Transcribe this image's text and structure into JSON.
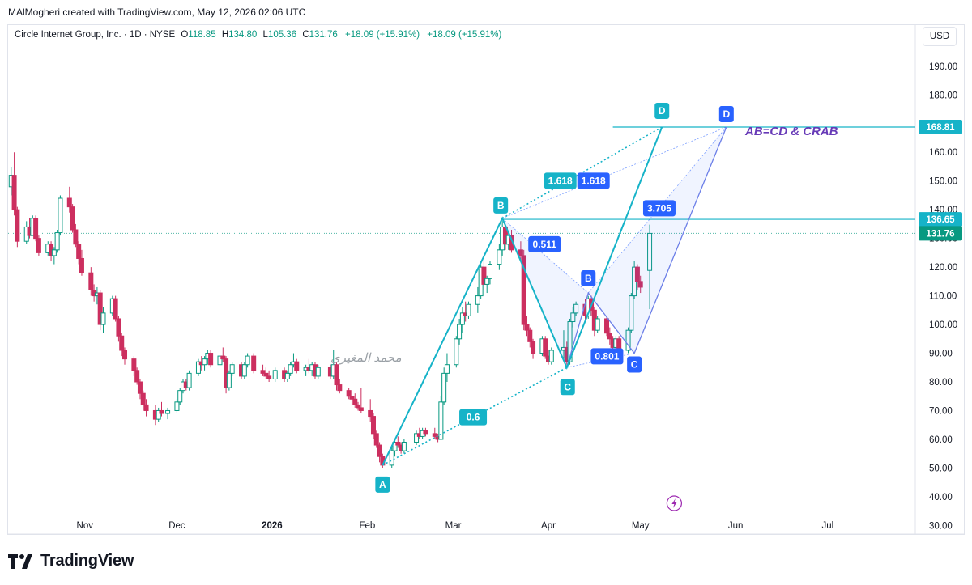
{
  "header": {
    "creator_line": "MAlMogheri created with TradingView.com, May 12, 2026 02:06 UTC"
  },
  "legend": {
    "symbol": "Circle Internet Group, Inc. · 1D · NYSE",
    "open_label": "O",
    "open": "118.85",
    "high_label": "H",
    "high": "134.80",
    "low_label": "L",
    "low": "105.36",
    "close_label": "C",
    "close": "131.76",
    "change": "+18.09 (+15.91%)",
    "change2": "+18.09 (+15.91%)"
  },
  "currency_button": "USD",
  "brand": {
    "name": "TradingView",
    "logo_icon": "tradingview-logo-icon"
  },
  "colors": {
    "up": "#089981",
    "down": "#cc2f5f",
    "teal": "#16b3c8",
    "blue": "#2962ff",
    "purple": "#673ab7"
  },
  "chart_data": {
    "type": "candlestick",
    "title": "",
    "ylim": [
      27,
      197
    ],
    "y_ticks": [
      30,
      40,
      50,
      60,
      70,
      80,
      90,
      100,
      110,
      120,
      130,
      140,
      150,
      160,
      170,
      180,
      190
    ],
    "y_tick_labels": [
      "30.00",
      "40.00",
      "50.00",
      "60.00",
      "70.00",
      "80.00",
      "90.00",
      "100.00",
      "110.00",
      "120.00",
      "130.00",
      "140.00",
      "150.00",
      "160.00",
      "170.00",
      "180.00",
      "190.00"
    ],
    "x_labels": [
      {
        "label": "Nov",
        "x": "2025-11-01",
        "bold": false
      },
      {
        "label": "Dec",
        "x": "2025-12-01",
        "bold": false
      },
      {
        "label": "2026",
        "x": "2026-01-01",
        "bold": true
      },
      {
        "label": "Feb",
        "x": "2026-02-01",
        "bold": false
      },
      {
        "label": "Mar",
        "x": "2026-03-01",
        "bold": false
      },
      {
        "label": "Apr",
        "x": "2026-04-01",
        "bold": false
      },
      {
        "label": "May",
        "x": "2026-05-01",
        "bold": false
      },
      {
        "label": "Jun",
        "x": "2026-06-01",
        "bold": false
      },
      {
        "label": "Jul",
        "x": "2026-07-01",
        "bold": false
      }
    ],
    "x_range": [
      "2025-10-07",
      "2026-07-29"
    ],
    "price_tags": [
      {
        "label": "168.81",
        "value": 168.81,
        "color": "#16b3c8"
      },
      {
        "label": "136.65",
        "value": 136.65,
        "color": "#16b3c8"
      },
      {
        "label": "131.76",
        "value": 131.76,
        "color": "#089981"
      }
    ],
    "candles": [
      [
        "2025-10-08",
        148,
        155,
        145,
        152
      ],
      [
        "2025-10-09",
        152,
        160,
        138,
        140
      ],
      [
        "2025-10-10",
        140,
        141,
        127,
        129
      ],
      [
        "2025-10-13",
        129,
        136,
        128,
        134
      ],
      [
        "2025-10-14",
        134,
        137,
        130,
        131
      ],
      [
        "2025-10-15",
        131,
        138,
        131,
        137
      ],
      [
        "2025-10-16",
        137,
        138,
        129,
        130
      ],
      [
        "2025-10-17",
        130,
        131,
        124,
        125
      ],
      [
        "2025-10-20",
        125,
        129,
        124,
        128
      ],
      [
        "2025-10-21",
        128,
        129,
        122,
        124
      ],
      [
        "2025-10-22",
        124,
        127,
        121,
        126
      ],
      [
        "2025-10-23",
        126,
        133,
        125,
        132
      ],
      [
        "2025-10-24",
        132,
        145,
        131,
        144
      ],
      [
        "2025-10-27",
        144,
        148,
        139,
        141
      ],
      [
        "2025-10-28",
        141,
        142,
        132,
        133
      ],
      [
        "2025-10-29",
        133,
        135,
        127,
        128
      ],
      [
        "2025-10-30",
        128,
        129,
        121,
        123
      ],
      [
        "2025-10-31",
        123,
        126,
        117,
        118
      ],
      [
        "2025-11-03",
        118,
        120,
        110,
        112
      ],
      [
        "2025-11-04",
        112,
        114,
        108,
        110
      ],
      [
        "2025-11-05",
        110,
        113,
        107,
        111
      ],
      [
        "2025-11-06",
        111,
        112,
        98,
        100
      ],
      [
        "2025-11-07",
        100,
        106,
        97,
        104
      ],
      [
        "2025-11-10",
        104,
        110,
        103,
        109
      ],
      [
        "2025-11-11",
        109,
        110,
        101,
        102
      ],
      [
        "2025-11-12",
        102,
        103,
        94,
        96
      ],
      [
        "2025-11-13",
        96,
        97,
        89,
        91
      ],
      [
        "2025-11-14",
        91,
        92,
        86,
        88
      ],
      [
        "2025-11-17",
        88,
        89,
        82,
        84
      ],
      [
        "2025-11-18",
        84,
        85,
        79,
        80
      ],
      [
        "2025-11-19",
        80,
        81,
        74,
        76
      ],
      [
        "2025-11-20",
        76,
        77,
        70,
        72
      ],
      [
        "2025-11-21",
        72,
        74,
        68,
        70
      ],
      [
        "2025-11-24",
        70,
        72,
        65,
        67
      ],
      [
        "2025-11-25",
        67,
        71,
        66,
        70
      ],
      [
        "2025-11-26",
        70,
        73,
        68,
        69
      ],
      [
        "2025-11-28",
        69,
        71,
        67,
        70
      ],
      [
        "2025-12-01",
        70,
        74,
        69,
        73
      ],
      [
        "2025-12-02",
        73,
        78,
        72,
        77
      ],
      [
        "2025-12-03",
        77,
        81,
        76,
        80
      ],
      [
        "2025-12-04",
        80,
        81,
        77,
        78
      ],
      [
        "2025-12-05",
        78,
        84,
        77,
        83
      ],
      [
        "2025-12-08",
        83,
        88,
        82,
        87
      ],
      [
        "2025-12-09",
        87,
        89,
        84,
        86
      ],
      [
        "2025-12-10",
        86,
        89,
        84,
        88
      ],
      [
        "2025-12-11",
        88,
        91,
        86,
        90
      ],
      [
        "2025-12-12",
        90,
        91,
        85,
        86
      ],
      [
        "2025-12-15",
        86,
        91,
        85,
        89
      ],
      [
        "2025-12-16",
        89,
        92,
        87,
        88
      ],
      [
        "2025-12-17",
        88,
        89,
        76,
        78
      ],
      [
        "2025-12-18",
        78,
        84,
        77,
        83
      ],
      [
        "2025-12-19",
        83,
        87,
        82,
        86
      ],
      [
        "2025-12-22",
        86,
        87,
        81,
        82
      ],
      [
        "2025-12-23",
        82,
        87,
        81,
        86
      ],
      [
        "2025-12-24",
        86,
        90,
        85,
        89
      ],
      [
        "2025-12-26",
        89,
        90,
        83,
        84
      ],
      [
        "2025-12-29",
        84,
        86,
        82,
        83
      ],
      [
        "2025-12-30",
        83,
        85,
        81,
        82
      ],
      [
        "2025-12-31",
        82,
        84,
        80,
        81
      ],
      [
        "2026-01-02",
        81,
        85,
        80,
        84
      ],
      [
        "2026-01-05",
        84,
        85,
        80,
        81
      ],
      [
        "2026-01-06",
        81,
        84,
        80,
        83
      ],
      [
        "2026-01-07",
        83,
        87,
        82,
        86
      ],
      [
        "2026-01-08",
        86,
        90,
        85,
        87
      ],
      [
        "2026-01-09",
        87,
        88,
        83,
        84
      ],
      [
        "2026-01-12",
        84,
        86,
        82,
        85
      ],
      [
        "2026-01-13",
        85,
        88,
        83,
        84
      ],
      [
        "2026-01-14",
        84,
        87,
        82,
        86
      ],
      [
        "2026-01-15",
        86,
        87,
        81,
        82
      ],
      [
        "2026-01-16",
        82,
        86,
        81,
        85
      ],
      [
        "2026-01-20",
        85,
        86,
        81,
        82
      ],
      [
        "2026-01-21",
        82,
        91,
        81,
        86
      ],
      [
        "2026-01-22",
        86,
        87,
        77,
        79
      ],
      [
        "2026-01-23",
        79,
        81,
        76,
        77
      ],
      [
        "2026-01-26",
        77,
        78,
        74,
        75
      ],
      [
        "2026-01-27",
        75,
        77,
        72,
        74
      ],
      [
        "2026-01-28",
        74,
        76,
        71,
        72
      ],
      [
        "2026-01-29",
        72,
        73,
        70,
        71
      ],
      [
        "2026-01-30",
        71,
        78,
        69,
        70
      ],
      [
        "2026-02-02",
        70,
        74,
        66,
        68
      ],
      [
        "2026-02-03",
        68,
        69,
        60,
        62
      ],
      [
        "2026-02-04",
        62,
        63,
        57,
        58
      ],
      [
        "2026-02-05",
        58,
        59,
        52,
        54
      ],
      [
        "2026-02-06",
        54,
        55,
        50,
        51
      ],
      [
        "2026-02-09",
        51,
        58,
        50,
        56
      ],
      [
        "2026-02-10",
        56,
        60,
        54,
        59
      ],
      [
        "2026-02-11",
        59,
        61,
        57,
        58
      ],
      [
        "2026-02-12",
        58,
        59,
        55,
        56
      ],
      [
        "2026-02-13",
        56,
        60,
        55,
        59
      ],
      [
        "2026-02-17",
        59,
        63,
        58,
        62
      ],
      [
        "2026-02-18",
        62,
        64,
        60,
        61
      ],
      [
        "2026-02-19",
        61,
        64,
        60,
        63
      ],
      [
        "2026-02-20",
        63,
        64,
        61,
        62
      ],
      [
        "2026-02-23",
        62,
        64,
        60,
        61
      ],
      [
        "2026-02-24",
        61,
        62,
        59,
        60
      ],
      [
        "2026-02-25",
        60,
        75,
        60,
        73
      ],
      [
        "2026-02-26",
        73,
        85,
        72,
        83
      ],
      [
        "2026-02-27",
        83,
        90,
        80,
        86
      ],
      [
        "2026-03-02",
        86,
        96,
        85,
        95
      ],
      [
        "2026-03-03",
        95,
        102,
        93,
        100
      ],
      [
        "2026-03-04",
        100,
        106,
        97,
        104
      ],
      [
        "2026-03-05",
        104,
        108,
        101,
        103
      ],
      [
        "2026-03-06",
        103,
        108,
        102,
        107
      ],
      [
        "2026-03-09",
        107,
        113,
        104,
        110
      ],
      [
        "2026-03-10",
        110,
        121,
        109,
        120
      ],
      [
        "2026-03-11",
        120,
        122,
        112,
        114
      ],
      [
        "2026-03-12",
        114,
        117,
        111,
        116
      ],
      [
        "2026-03-13",
        116,
        122,
        114,
        121
      ],
      [
        "2026-03-16",
        121,
        128,
        119,
        126
      ],
      [
        "2026-03-17",
        126,
        136,
        124,
        134
      ],
      [
        "2026-03-18",
        134,
        135,
        126,
        128
      ],
      [
        "2026-03-19",
        128,
        132,
        126,
        131
      ],
      [
        "2026-03-20",
        131,
        133,
        125,
        126
      ],
      [
        "2026-03-23",
        126,
        129,
        122,
        124
      ],
      [
        "2026-03-24",
        124,
        126,
        98,
        100
      ],
      [
        "2026-03-25",
        100,
        103,
        96,
        98
      ],
      [
        "2026-03-26",
        98,
        99,
        92,
        94
      ],
      [
        "2026-03-27",
        94,
        95,
        88,
        90
      ],
      [
        "2026-03-30",
        90,
        96,
        89,
        95
      ],
      [
        "2026-03-31",
        95,
        96,
        88,
        89
      ],
      [
        "2026-04-01",
        89,
        91,
        86,
        87
      ],
      [
        "2026-04-02",
        87,
        92,
        86,
        91
      ],
      [
        "2026-04-06",
        91,
        98,
        88,
        92
      ],
      [
        "2026-04-07",
        92,
        94,
        86,
        87
      ],
      [
        "2026-04-08",
        87,
        102,
        86,
        101
      ],
      [
        "2026-04-09",
        101,
        106,
        99,
        104
      ],
      [
        "2026-04-10",
        104,
        108,
        103,
        107
      ],
      [
        "2026-04-13",
        107,
        109,
        101,
        103
      ],
      [
        "2026-04-14",
        103,
        110,
        102,
        109
      ],
      [
        "2026-04-15",
        109,
        110,
        103,
        105
      ],
      [
        "2026-04-16",
        105,
        106,
        96,
        98
      ],
      [
        "2026-04-17",
        98,
        103,
        97,
        102
      ],
      [
        "2026-04-20",
        102,
        103,
        96,
        97
      ],
      [
        "2026-04-21",
        97,
        99,
        93,
        95
      ],
      [
        "2026-04-22",
        95,
        96,
        91,
        92
      ],
      [
        "2026-04-23",
        92,
        96,
        91,
        95
      ],
      [
        "2026-04-24",
        95,
        96,
        90,
        91
      ],
      [
        "2026-04-27",
        91,
        99,
        90,
        98
      ],
      [
        "2026-04-28",
        98,
        111,
        97,
        110
      ],
      [
        "2026-04-29",
        110,
        122,
        109,
        120
      ],
      [
        "2026-04-30",
        120,
        121,
        112,
        115
      ],
      [
        "2026-05-01",
        115,
        117,
        111,
        113
      ],
      [
        "2026-05-04",
        118.85,
        134.8,
        105.36,
        131.76
      ]
    ],
    "patterns": [
      {
        "name": "AB=CD",
        "points": [
          {
            "label": "A",
            "x": "2026-02-06",
            "y": 51
          },
          {
            "label": "B",
            "x": "2026-03-17",
            "y": 137
          },
          {
            "label": "C",
            "x": "2026-04-07",
            "y": 85
          },
          {
            "label": "D",
            "x": "2026-05-08",
            "y": 168.81
          }
        ],
        "ratios": [
          {
            "label": "0.6"
          },
          {
            "label": "1.618"
          }
        ]
      },
      {
        "name": "CRAB",
        "points": [
          {
            "label": "B",
            "x": "2026-04-14",
            "y": 111
          },
          {
            "label": "C",
            "x": "2026-04-29",
            "y": 90
          },
          {
            "label": "D",
            "x": "2026-05-29",
            "y": 168.81
          }
        ],
        "ratios": [
          {
            "label": "0.511"
          },
          {
            "label": "0.801"
          },
          {
            "label": "3.705"
          },
          {
            "label": "1.618"
          }
        ]
      }
    ],
    "annotations": [
      {
        "text": "AB=CD & CRAB",
        "color": "#673ab7"
      },
      {
        "text": "محمد المغيري",
        "color": "#9aa0a6"
      }
    ]
  }
}
